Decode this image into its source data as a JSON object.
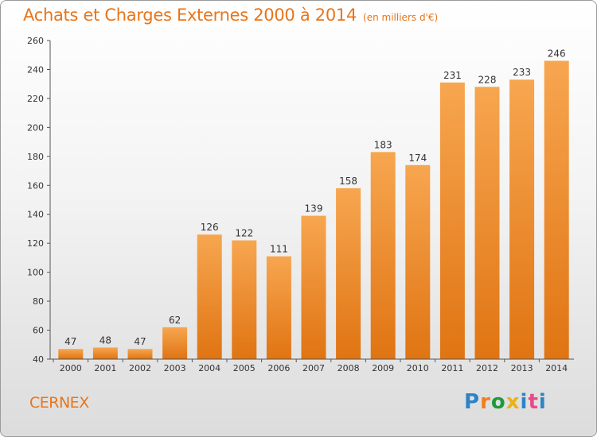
{
  "header": {
    "title": "Achats et Charges Externes 2000 à 2014",
    "subtitle": "(en milliers d'€)"
  },
  "footer": {
    "commune": "CERNEX",
    "logo_text": "Proxiti",
    "logo_colors": [
      "#2e83c6",
      "#f07f1a",
      "#1e9a3c",
      "#e8b21c",
      "#2e83c6",
      "#e84b86",
      "#2e83c6"
    ]
  },
  "colors": {
    "bar_light": "#f7a650",
    "bar_dark": "#e07412",
    "accent": "#e8751a"
  },
  "chart_data": {
    "type": "bar",
    "title": "Achats et Charges Externes 2000 à 2014",
    "subtitle": "(en milliers d'€)",
    "categories": [
      "2000",
      "2001",
      "2002",
      "2003",
      "2004",
      "2005",
      "2006",
      "2007",
      "2008",
      "2009",
      "2010",
      "2011",
      "2012",
      "2013",
      "2014"
    ],
    "values": [
      47,
      48,
      47,
      62,
      126,
      122,
      111,
      139,
      158,
      183,
      174,
      231,
      228,
      233,
      246
    ],
    "ylim": [
      40,
      260
    ],
    "yticks": [
      40,
      60,
      80,
      100,
      120,
      140,
      160,
      180,
      200,
      220,
      240,
      260
    ],
    "grid": false,
    "data_labels": true
  }
}
